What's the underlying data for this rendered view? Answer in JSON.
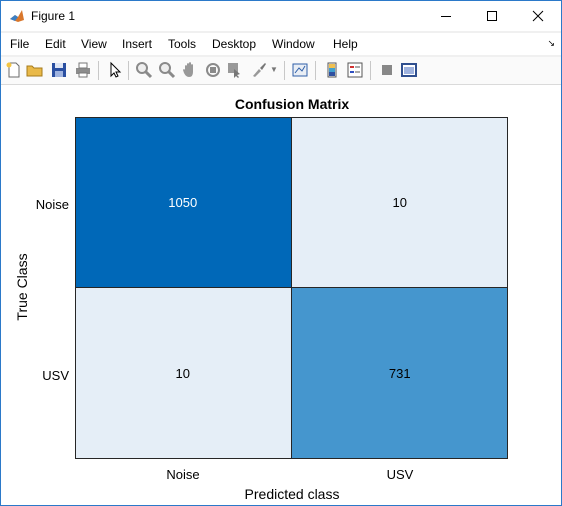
{
  "window": {
    "title": "Figure 1"
  },
  "menu": [
    "File",
    "Edit",
    "View",
    "Insert",
    "Tools",
    "Desktop",
    "Window",
    "Help"
  ],
  "toolbar": {
    "icons": [
      "new-figure-icon",
      "open-file-icon",
      "save-icon",
      "print-icon",
      "edit-plot-arrow-icon",
      "zoom-in-icon",
      "zoom-out-icon",
      "pan-icon",
      "rotate-3d-icon",
      "data-cursor-icon",
      "brush-icon",
      "link-plot-icon",
      "colorbar-icon",
      "legend-icon",
      "hide-plot-tools-icon",
      "show-plot-tools-icon"
    ]
  },
  "chart_data": {
    "type": "heatmap",
    "title": "Confusion Matrix",
    "xlabel": "Predicted class",
    "ylabel": "True Class",
    "x_categories": [
      "Noise",
      "USV"
    ],
    "y_categories": [
      "Noise",
      "USV"
    ],
    "values": [
      [
        1050,
        10
      ],
      [
        10,
        731
      ]
    ],
    "colors": [
      [
        "#0068b8",
        "#e5eef7"
      ],
      [
        "#e5eef7",
        "#4596ce"
      ]
    ],
    "text_colors": [
      [
        "#ffffff",
        "#000000"
      ],
      [
        "#000000",
        "#000000"
      ]
    ]
  }
}
